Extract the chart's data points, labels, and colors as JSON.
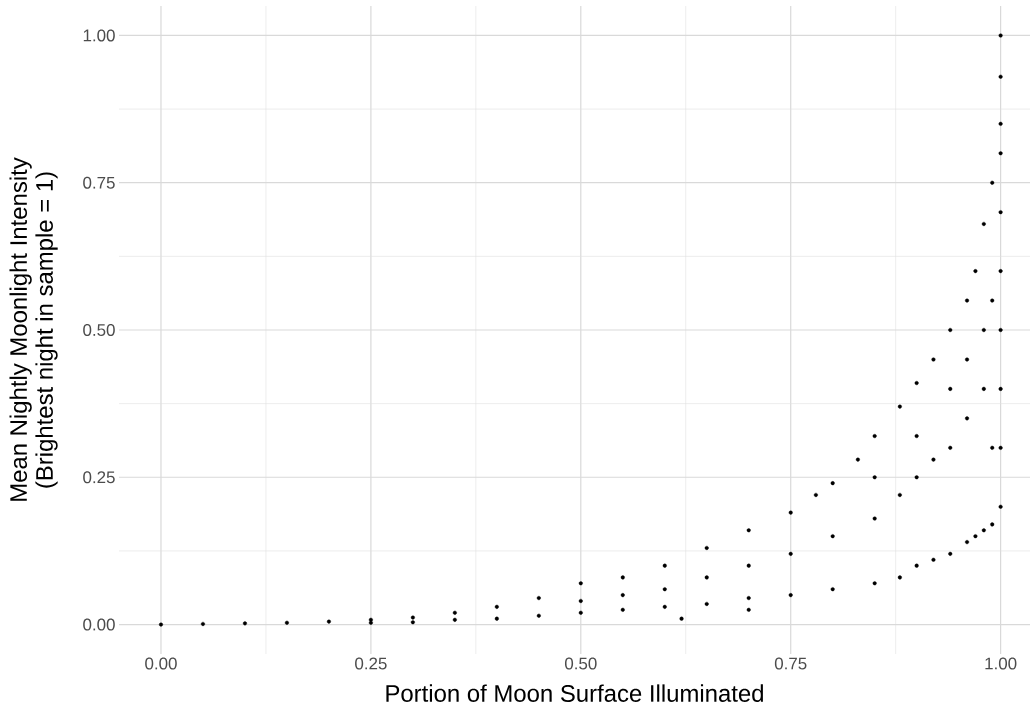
{
  "chart_data": {
    "type": "scatter",
    "xlabel": "Portion of Moon Surface Illuminated",
    "ylabel": "Mean Nightly Moonlight Intensity\n(Brightest night in sample = 1)",
    "xlim": [
      -0.05,
      1.035
    ],
    "ylim": [
      -0.05,
      1.05
    ],
    "xticks": [
      {
        "value": 0,
        "label": "0.00"
      },
      {
        "value": 0.25,
        "label": "0.25"
      },
      {
        "value": 0.5,
        "label": "0.50"
      },
      {
        "value": 0.75,
        "label": "0.75"
      },
      {
        "value": 1,
        "label": "1.00"
      }
    ],
    "yticks": [
      {
        "value": 0,
        "label": "0.00"
      },
      {
        "value": 0.25,
        "label": "0.25"
      },
      {
        "value": 0.5,
        "label": "0.50"
      },
      {
        "value": 0.75,
        "label": "0.75"
      },
      {
        "value": 1,
        "label": "1.00"
      }
    ],
    "grid": true,
    "series": [
      {
        "color": "#000000",
        "x": [
          0,
          0.05,
          0.1,
          0.15,
          0.2,
          0.25,
          0.25,
          0.3,
          0.3,
          0.35,
          0.35,
          0.4,
          0.4,
          0.45,
          0.45,
          0.5,
          0.5,
          0.5,
          0.55,
          0.55,
          0.55,
          0.6,
          0.6,
          0.6,
          0.62,
          0.65,
          0.65,
          0.65,
          0.7,
          0.7,
          0.7,
          0.7,
          0.75,
          0.75,
          0.75,
          0.78,
          0.8,
          0.8,
          0.8,
          0.83,
          0.85,
          0.85,
          0.85,
          0.85,
          0.88,
          0.88,
          0.88,
          0.9,
          0.9,
          0.9,
          0.9,
          0.92,
          0.92,
          0.92,
          0.94,
          0.94,
          0.94,
          0.94,
          0.96,
          0.96,
          0.96,
          0.96,
          0.97,
          0.97,
          0.98,
          0.98,
          0.98,
          0.98,
          0.99,
          0.99,
          0.99,
          0.99,
          1,
          1,
          1,
          1,
          1,
          1,
          1,
          1,
          1,
          1
        ],
        "values": [
          0,
          0.001,
          0.002,
          0.003,
          0.005,
          0.008,
          0.003,
          0.012,
          0.004,
          0.02,
          0.008,
          0.03,
          0.01,
          0.045,
          0.015,
          0.07,
          0.02,
          0.04,
          0.08,
          0.025,
          0.05,
          0.1,
          0.03,
          0.06,
          0.01,
          0.13,
          0.035,
          0.08,
          0.16,
          0.045,
          0.1,
          0.025,
          0.19,
          0.05,
          0.12,
          0.22,
          0.24,
          0.06,
          0.15,
          0.28,
          0.32,
          0.07,
          0.18,
          0.25,
          0.37,
          0.08,
          0.22,
          0.41,
          0.1,
          0.25,
          0.32,
          0.45,
          0.11,
          0.28,
          0.5,
          0.12,
          0.3,
          0.4,
          0.55,
          0.14,
          0.35,
          0.45,
          0.6,
          0.15,
          0.68,
          0.16,
          0.4,
          0.5,
          0.75,
          0.17,
          0.3,
          0.55,
          0.93,
          0.85,
          0.8,
          0.7,
          0.6,
          0.5,
          0.4,
          0.3,
          0.2,
          1.0
        ]
      }
    ]
  }
}
